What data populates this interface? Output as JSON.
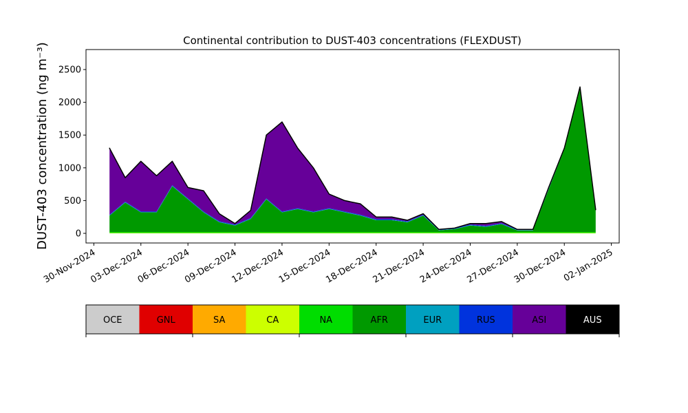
{
  "chart_data": {
    "type": "stacked_area",
    "title": "Continental contribution to DUST-403 concentrations (FLEXDUST)",
    "y_label": "DUST-403 concentration (ng m⁻³)",
    "x": [
      "2024-12-01",
      "2024-12-02",
      "2024-12-03",
      "2024-12-04",
      "2024-12-05",
      "2024-12-06",
      "2024-12-07",
      "2024-12-08",
      "2024-12-09",
      "2024-12-10",
      "2024-12-11",
      "2024-12-12",
      "2024-12-13",
      "2024-12-14",
      "2024-12-15",
      "2024-12-16",
      "2024-12-17",
      "2024-12-18",
      "2024-12-19",
      "2024-12-20",
      "2024-12-21",
      "2024-12-22",
      "2024-12-23",
      "2024-12-24",
      "2024-12-25",
      "2024-12-26",
      "2024-12-27",
      "2024-12-28",
      "2024-12-29",
      "2024-12-30",
      "2024-12-31",
      "2025-01-01"
    ],
    "series": [
      {
        "name": "OCE",
        "color": "#cccccc",
        "values": [
          0,
          0,
          0,
          0,
          0,
          0,
          0,
          0,
          0,
          0,
          0,
          0,
          0,
          0,
          0,
          0,
          0,
          0,
          0,
          0,
          0,
          0,
          0,
          0,
          0,
          0,
          0,
          0,
          0,
          0,
          0,
          0
        ]
      },
      {
        "name": "GNL",
        "color": "#e00000",
        "values": [
          0,
          0,
          0,
          0,
          0,
          0,
          0,
          0,
          0,
          0,
          0,
          0,
          0,
          0,
          0,
          0,
          0,
          0,
          0,
          0,
          0,
          0,
          0,
          0,
          0,
          0,
          0,
          0,
          0,
          0,
          0,
          0
        ]
      },
      {
        "name": "SA",
        "color": "#ffaa00",
        "values": [
          0,
          0,
          0,
          0,
          0,
          0,
          0,
          0,
          0,
          0,
          0,
          0,
          0,
          0,
          0,
          0,
          0,
          0,
          0,
          0,
          0,
          0,
          0,
          0,
          0,
          0,
          0,
          0,
          0,
          0,
          0,
          0
        ]
      },
      {
        "name": "CA",
        "color": "#ccff00",
        "values": [
          5,
          5,
          5,
          5,
          5,
          5,
          5,
          5,
          5,
          5,
          5,
          5,
          5,
          5,
          5,
          5,
          5,
          5,
          5,
          5,
          5,
          5,
          5,
          5,
          5,
          5,
          5,
          5,
          5,
          5,
          5,
          5
        ]
      },
      {
        "name": "NA",
        "color": "#00dd00",
        "values": [
          15,
          15,
          15,
          15,
          15,
          15,
          15,
          15,
          15,
          15,
          15,
          15,
          15,
          15,
          15,
          15,
          15,
          15,
          15,
          15,
          15,
          15,
          15,
          15,
          15,
          15,
          15,
          15,
          15,
          15,
          15,
          15
        ]
      },
      {
        "name": "AFR",
        "color": "#009900",
        "values": [
          250,
          450,
          300,
          300,
          700,
          500,
          300,
          150,
          100,
          200,
          500,
          300,
          350,
          300,
          350,
          300,
          250,
          180,
          180,
          150,
          250,
          25,
          45,
          100,
          80,
          120,
          25,
          25,
          650,
          1265,
          2200,
          325
        ]
      },
      {
        "name": "EUR",
        "color": "#00a0c0",
        "values": [
          5,
          5,
          5,
          5,
          5,
          5,
          5,
          5,
          5,
          5,
          5,
          5,
          5,
          5,
          5,
          5,
          5,
          5,
          5,
          5,
          5,
          5,
          5,
          5,
          5,
          5,
          5,
          5,
          5,
          5,
          5,
          5
        ]
      },
      {
        "name": "RUS",
        "color": "#0033dd",
        "values": [
          10,
          10,
          10,
          10,
          10,
          10,
          10,
          10,
          10,
          10,
          10,
          10,
          10,
          10,
          10,
          10,
          10,
          10,
          10,
          10,
          10,
          10,
          10,
          10,
          10,
          10,
          10,
          10,
          10,
          10,
          10,
          10
        ]
      },
      {
        "name": "ASI",
        "color": "#660099",
        "values": [
          1015,
          365,
          765,
          545,
          365,
          165,
          315,
          115,
          15,
          115,
          965,
          1365,
          915,
          665,
          215,
          165,
          165,
          35,
          35,
          15,
          15,
          0,
          0,
          15,
          35,
          25,
          0,
          0,
          15,
          0,
          0,
          0
        ]
      },
      {
        "name": "AUS",
        "color": "#000000",
        "values": [
          0,
          0,
          0,
          0,
          0,
          0,
          0,
          0,
          0,
          0,
          0,
          0,
          0,
          0,
          0,
          0,
          0,
          0,
          0,
          0,
          0,
          0,
          0,
          0,
          0,
          0,
          0,
          0,
          0,
          0,
          0,
          0
        ]
      }
    ],
    "xlim": [
      "2024-11-29T12:00:00Z",
      "2025-01-02T12:00:00Z"
    ],
    "xticks": [
      {
        "value": "2024-11-30",
        "label": "30-Nov-2024"
      },
      {
        "value": "2024-12-03",
        "label": "03-Dec-2024"
      },
      {
        "value": "2024-12-06",
        "label": "06-Dec-2024"
      },
      {
        "value": "2024-12-09",
        "label": "09-Dec-2024"
      },
      {
        "value": "2024-12-12",
        "label": "12-Dec-2024"
      },
      {
        "value": "2024-12-15",
        "label": "15-Dec-2024"
      },
      {
        "value": "2024-12-18",
        "label": "18-Dec-2024"
      },
      {
        "value": "2024-12-21",
        "label": "21-Dec-2024"
      },
      {
        "value": "2024-12-24",
        "label": "24-Dec-2024"
      },
      {
        "value": "2024-12-27",
        "label": "27-Dec-2024"
      },
      {
        "value": "2024-12-30",
        "label": "30-Dec-2024"
      },
      {
        "value": "2025-01-02",
        "label": "02-Jan-2025"
      }
    ],
    "ylim": [
      -147,
      2805
    ],
    "yticks": [
      0,
      500,
      1000,
      1500,
      2000,
      2500
    ],
    "legend": "bottom"
  }
}
